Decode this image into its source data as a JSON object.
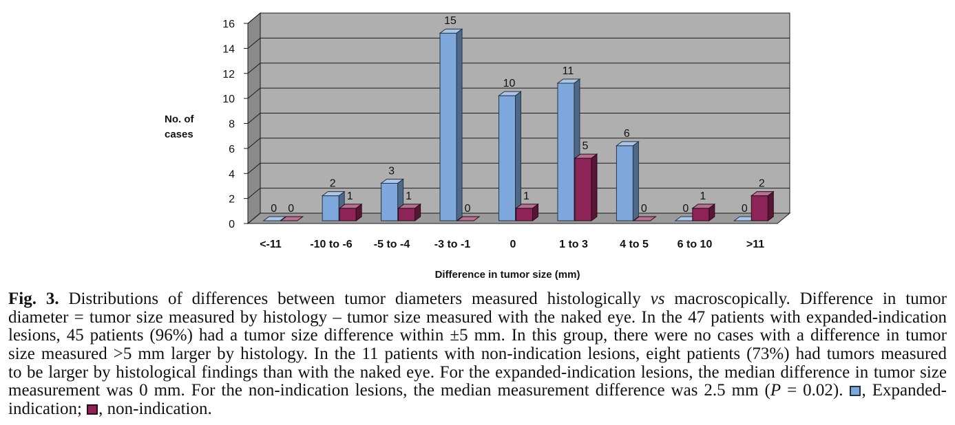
{
  "chart_data": {
    "type": "bar",
    "3d": true,
    "categories": [
      "<-11",
      "-10 to -6",
      "-5 to -4",
      "-3 to -1",
      "0",
      "1 to 3",
      "4 to 5",
      "6 to 10",
      ">11"
    ],
    "series": [
      {
        "color": "#7ea8dc",
        "values": [
          0,
          2,
          3,
          15,
          10,
          11,
          6,
          0,
          0
        ]
      },
      {
        "color": "#8c2457",
        "values": [
          0,
          1,
          1,
          0,
          1,
          5,
          0,
          1,
          2
        ]
      }
    ],
    "xlabel": "Difference in tumor size (mm)",
    "ylabel_lines": [
      "No. of",
      "cases"
    ],
    "ylim": [
      0,
      16
    ],
    "yticks": [
      0,
      2,
      4,
      6,
      8,
      10,
      12,
      14,
      16
    ],
    "grid": true,
    "data_labels": true,
    "legend_placement": "caption"
  },
  "caption": {
    "lines": [
      [
        "Fig. 3.",
        " Distributions of differences between tumor diameters measured histologically ",
        "vs",
        " macroscopically. Difference in tumor"
      ],
      [
        "diameter = tumor size measured by histology – tumor size measured with the naked eye. In the 47 patients with expanded-indication"
      ],
      [
        "lesions, 45 patients (96%) had a tumor size difference within ±5 mm. In this group, there were no cases with a difference in tumor"
      ],
      [
        "size measured >5 mm larger by histology. In the 11 patients with non-indication lesions, eight patients (73%) had tumors measured"
      ],
      [
        "to be larger by histological findings than with the naked eye. For the expanded-indication lesions, the median difference in tumor size"
      ],
      [
        "measurement was 0 mm. For the non-indication lesions, the median measurement difference was 2.5 mm (",
        "P",
        " = 0.02). ",
        ", Expanded-"
      ],
      [
        "indication; ",
        ", non-indication."
      ]
    ]
  }
}
